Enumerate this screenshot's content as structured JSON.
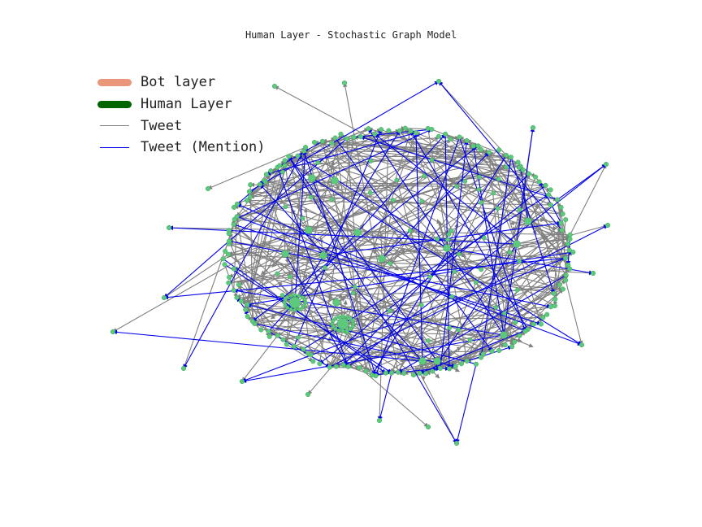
{
  "title": "Human Layer - Stochastic Graph Model",
  "legend": [
    {
      "label": "Bot layer",
      "style": "thick",
      "color": "#e9967a"
    },
    {
      "label": "Human Layer",
      "style": "thick",
      "color": "#006400"
    },
    {
      "label": "Tweet",
      "style": "line",
      "color": "#808080"
    },
    {
      "label": "Tweet (Mention)",
      "style": "line",
      "color": "#0000ee"
    }
  ],
  "colors": {
    "node": "#5cc97c",
    "node_edge": "#3aa55a",
    "tweet_edge": "#808080",
    "mention_edge": "#0000ee"
  }
}
